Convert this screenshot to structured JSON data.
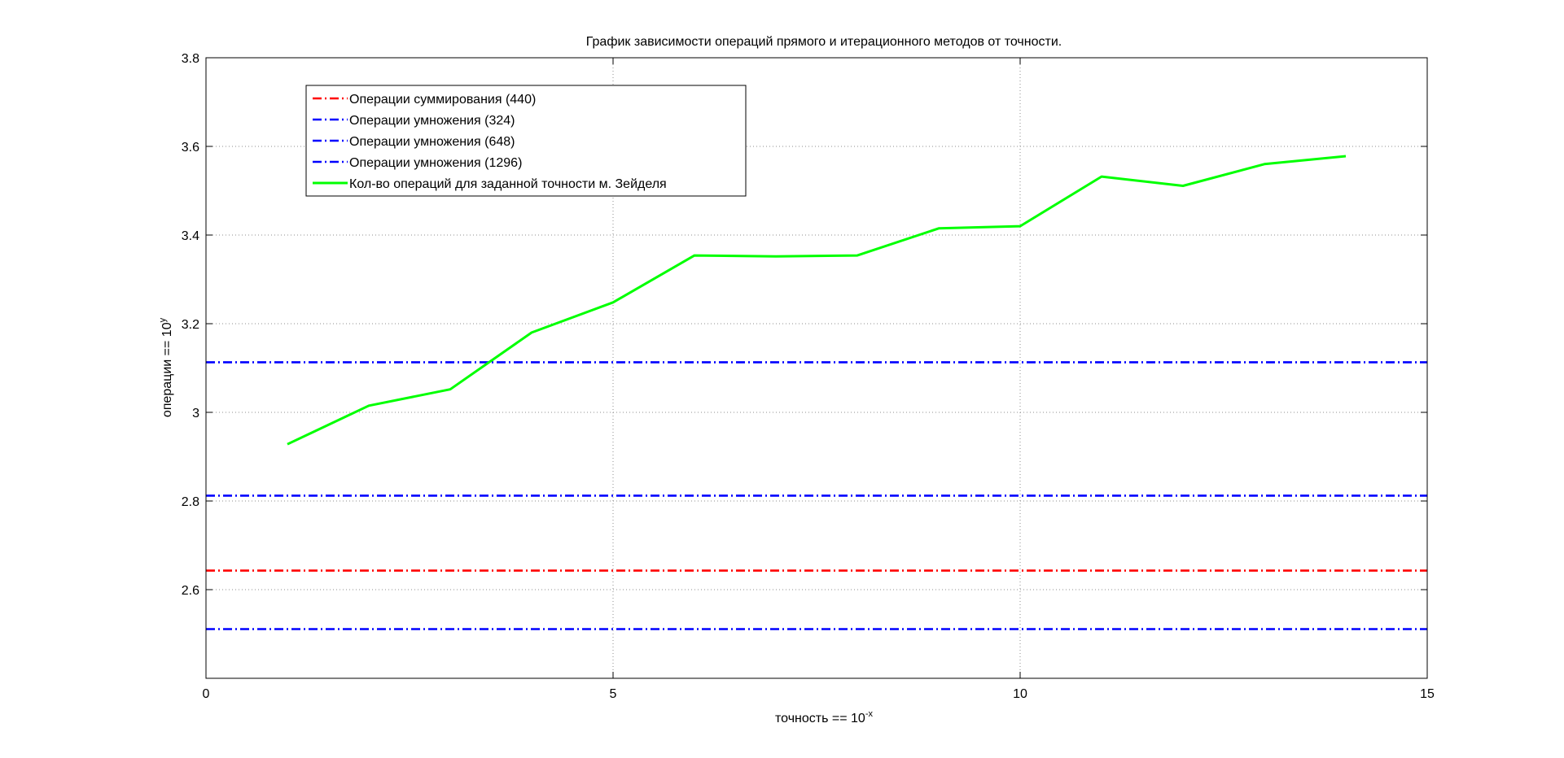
{
  "chart_data": {
    "type": "line",
    "title": "График зависимости операций прямого и итерационного методов от точности.",
    "xlabel": {
      "base": "точность == 10",
      "sup": "-x"
    },
    "ylabel": {
      "base": "операции == 10",
      "sup": "y"
    },
    "xlim": [
      0,
      15
    ],
    "ylim": [
      2.4,
      3.8
    ],
    "xticks": [
      0,
      5,
      10,
      15
    ],
    "yticks": [
      2.6,
      2.8,
      3.0,
      3.2,
      3.4,
      3.6,
      3.8
    ],
    "ytick_labels": [
      "2.6",
      "2.8",
      "3",
      "3.2",
      "3.4",
      "3.6",
      "3.8"
    ],
    "xtick_labels": [
      "0",
      "5",
      "10",
      "15"
    ],
    "grid": true,
    "legend_position": "top-left",
    "series": [
      {
        "name": "Операции суммирования (440)",
        "color": "#ff0000",
        "style": "dash-dot",
        "kind": "hline",
        "y": 2.643
      },
      {
        "name": "Операции умножения (324)",
        "color": "#0000ff",
        "style": "dash-dot",
        "kind": "hline",
        "y": 2.511
      },
      {
        "name": "Операции умножения (648)",
        "color": "#0000ff",
        "style": "dash-dot",
        "kind": "hline",
        "y": 2.812
      },
      {
        "name": "Операции умножения (1296)",
        "color": "#0000ff",
        "style": "dash-dot",
        "kind": "hline",
        "y": 3.113
      },
      {
        "name": "Кол-во операций для заданной точности м. Зейделя",
        "color": "#00ff00",
        "style": "solid",
        "kind": "line",
        "x": [
          1,
          2,
          3,
          4,
          5,
          6,
          7,
          8,
          9,
          10,
          11,
          12,
          13,
          14
        ],
        "y": [
          2.928,
          3.015,
          3.052,
          3.18,
          3.248,
          3.354,
          3.352,
          3.354,
          3.415,
          3.42,
          3.532,
          3.511,
          3.56,
          3.578
        ]
      }
    ]
  }
}
